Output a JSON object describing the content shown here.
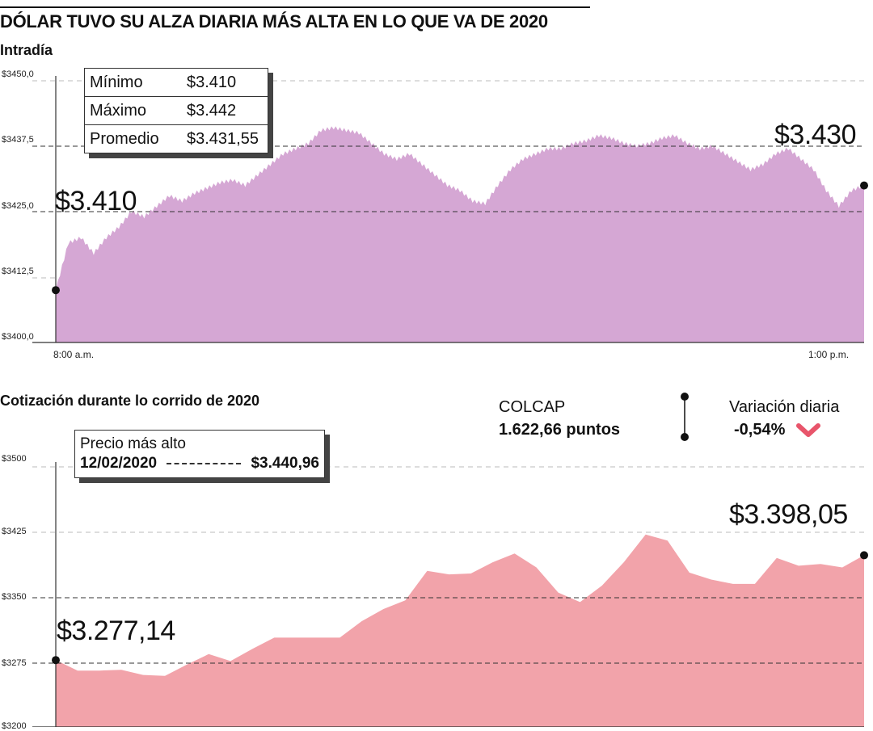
{
  "headline": "DÓLAR TUVO SU ALZA DIARIA MÁS ALTA EN LO QUE VA DE 2020",
  "stats": {
    "min_label": "Mínimo",
    "min_value": "$3.410",
    "max_label": "Máximo",
    "max_value": "$3.442",
    "avg_label": "Promedio",
    "avg_value": "$3.431,55"
  },
  "annotations": {
    "intraday_start": "$3.410",
    "intraday_end": "$3.430",
    "ytd_start": "$3.277,14",
    "ytd_end": "$3.398,05"
  },
  "high_box": {
    "label": "Precio más alto",
    "date": "12/02/2020",
    "value": "$3.440,96"
  },
  "colcap": {
    "label": "COLCAP",
    "value": "1.622,66 puntos"
  },
  "variacion": {
    "label": "Variación diaria",
    "value": "-0,54%"
  },
  "colors": {
    "intraday_fill": "#d5a7d4",
    "ytd_fill": "#f2a3aa",
    "chevron": "#e8556b",
    "axis": "#333333"
  },
  "chart_data": [
    {
      "type": "area",
      "title": "Intradía",
      "x_labels": [
        "8:00 a.m.",
        "1:00 p.m."
      ],
      "y_ticks": [
        "$3400,0",
        "$3412,5",
        "$3425,0",
        "$3437,5",
        "$3450,0"
      ],
      "ylim": [
        3400,
        3450
      ],
      "series_values": [
        3410,
        3419,
        3420,
        3417,
        3420,
        3422,
        3425,
        3424,
        3426,
        3428,
        3427,
        3428.5,
        3429.5,
        3430.5,
        3431,
        3430,
        3432,
        3434,
        3436,
        3437,
        3438,
        3440.5,
        3441,
        3440.5,
        3440,
        3438,
        3436,
        3435,
        3436,
        3434,
        3432,
        3430,
        3429,
        3427,
        3426.5,
        3430,
        3433,
        3435,
        3436,
        3437,
        3437,
        3438,
        3438.5,
        3439.5,
        3439,
        3438,
        3437.5,
        3438,
        3439,
        3439.5,
        3438,
        3437,
        3437.5,
        3436,
        3434.5,
        3433,
        3434,
        3436,
        3437,
        3435,
        3433,
        3429,
        3426,
        3429,
        3430
      ]
    },
    {
      "type": "area",
      "title": "Cotización durante lo corrido de 2020",
      "y_ticks": [
        "$3200",
        "$3275",
        "$3350",
        "$3425",
        "$3500"
      ],
      "ylim": [
        3200,
        3500
      ],
      "series_values": [
        3277.14,
        3265,
        3265,
        3266,
        3260,
        3259,
        3272,
        3284,
        3276,
        3290,
        3303,
        3303,
        3303,
        3303,
        3322,
        3336,
        3346,
        3380,
        3376,
        3377,
        3390,
        3400,
        3384,
        3355,
        3344,
        3363,
        3390,
        3422,
        3415,
        3378,
        3370,
        3365,
        3365,
        3395,
        3386,
        3388,
        3384,
        3398.05
      ]
    }
  ]
}
